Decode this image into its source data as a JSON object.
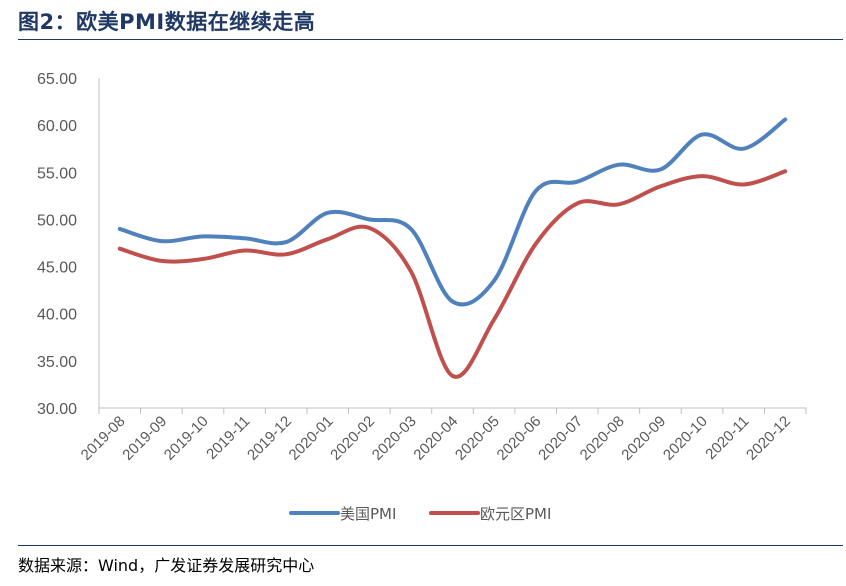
{
  "header": {
    "title": "图2：欧美PMI数据在继续走高"
  },
  "footer": {
    "source": "数据来源：Wind，广发证券发展研究中心"
  },
  "chart_data": {
    "type": "line",
    "title": "",
    "xlabel": "",
    "ylabel": "",
    "ylim": [
      30,
      65
    ],
    "yticks": [
      "65.00",
      "60.00",
      "55.00",
      "50.00",
      "45.00",
      "40.00",
      "35.00",
      "30.00"
    ],
    "categories": [
      "2019-08",
      "2019-09",
      "2019-10",
      "2019-11",
      "2019-12",
      "2020-01",
      "2020-02",
      "2020-03",
      "2020-04",
      "2020-05",
      "2020-06",
      "2020-07",
      "2020-08",
      "2020-09",
      "2020-10",
      "2020-11",
      "2020-12"
    ],
    "grid": false,
    "legend_position": "bottom",
    "series": [
      {
        "name": "美国PMI",
        "color": "#4f81bd",
        "values": [
          49.0,
          47.7,
          48.2,
          48.0,
          47.6,
          50.7,
          50.0,
          49.0,
          41.3,
          43.5,
          53.0,
          54.0,
          55.8,
          55.3,
          59.0,
          57.5,
          60.6
        ]
      },
      {
        "name": "欧元区PMI",
        "color": "#c0504d",
        "values": [
          46.9,
          45.6,
          45.8,
          46.7,
          46.3,
          47.9,
          49.1,
          44.5,
          33.4,
          39.4,
          47.4,
          51.7,
          51.6,
          53.5,
          54.6,
          53.7,
          55.1
        ]
      }
    ]
  }
}
